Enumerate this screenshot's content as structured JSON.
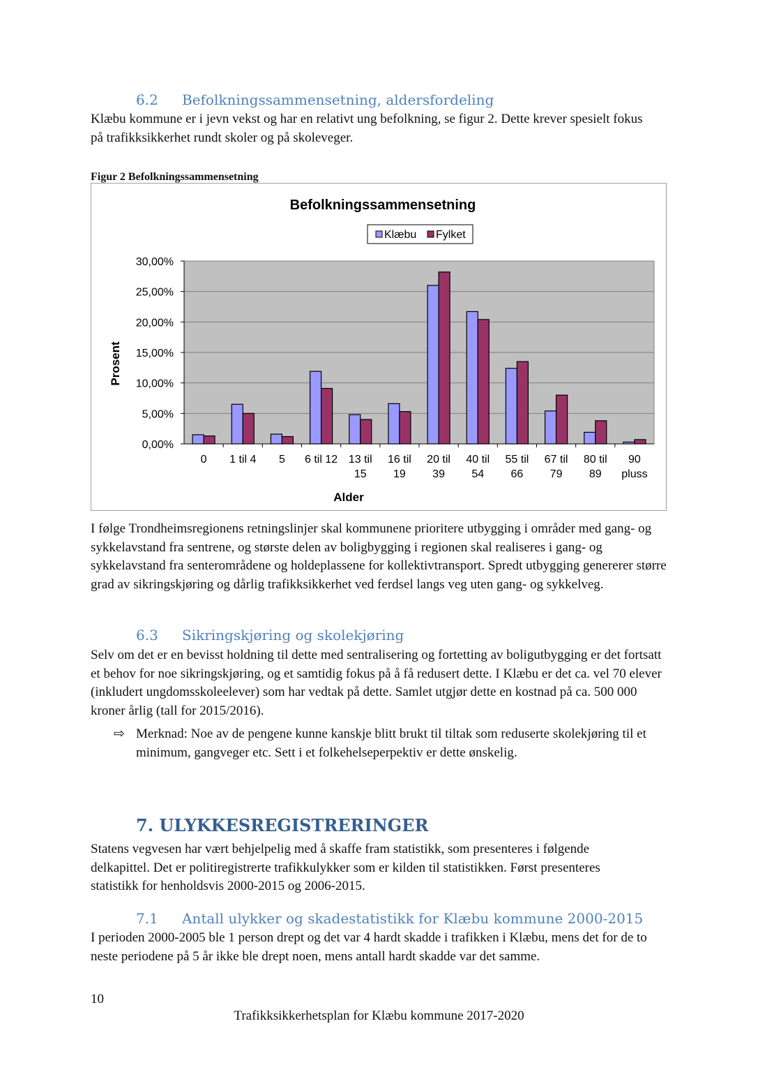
{
  "sections": {
    "s62": {
      "num": "6.2",
      "title": "Befolkningssammensetning, aldersfordeling",
      "body": "Klæbu kommune er i jevn vekst og har en relativt ung befolkning, se figur 2. Dette krever spesielt fokus på trafikksikkerhet rundt skoler og på skoleveger."
    },
    "figure_caption": "Figur 2 Befolkningssammensetning",
    "after_chart": "I følge Trondheimsregionens retningslinjer skal kommunene prioritere utbygging i områder med gang- og sykkelavstand fra sentrene, og største delen av boligbygging i regionen skal realiseres i gang- og sykkelavstand fra senterområdene og holdeplassene for kollektivtransport. Spredt utbygging genererer større grad av sikringskjøring og dårlig trafikksikkerhet ved ferdsel langs veg uten gang- og sykkelveg.",
    "s63": {
      "num": "6.3",
      "title": "Sikringskjøring og skolekjøring",
      "body": "Selv om det er en bevisst holdning til dette med sentralisering og fortetting av boligutbygging er det fortsatt et behov for noe sikringskjøring, og et samtidig fokus på å få redusert dette. I Klæbu er det ca. vel 70 elever (inkludert ungdomsskoleelever) som har vedtak på dette. Samlet utgjør dette en kostnad på ca. 500 000 kroner årlig (tall for 2015/2016).",
      "note_icon": "arrow-right-outline-icon",
      "note": "Merknad: Noe av de pengene kunne kanskje blitt brukt til tiltak som reduserte skolekjøring til et minimum, gangveger etc. Sett i et folkehelseperpektiv er dette ønskelig."
    },
    "s7": {
      "num": "7.",
      "title": "ULYKKESREGISTRERINGER",
      "body": "Statens vegvesen har vært behjelpelig med å skaffe fram statistikk, som presenteres i følgende delkapittel. Det er politiregistrerte trafikkulykker som er kilden til statistikken.  Først presenteres statistikk for henholdsvis 2000-2015 og 2006-2015."
    },
    "s71": {
      "num": "7.1",
      "title": "Antall ulykker og skadestatistikk for Klæbu kommune 2000-2015",
      "body": "I perioden 2000-2005 ble 1 person drept og det var 4 hardt skadde i trafikken i Klæbu, mens det for de to neste periodene på 5 år ikke ble drept noen, mens antall hardt skadde var det samme."
    }
  },
  "footer": {
    "page_number": "10",
    "title": "Trafikksikkerhetsplan for Klæbu kommune 2017-2020"
  },
  "chart_data": {
    "type": "bar",
    "title": "Befolkningssammensetning",
    "xlabel": "Alder",
    "ylabel": "Prosent",
    "categories": [
      [
        "0"
      ],
      [
        "1 til 4"
      ],
      [
        "5"
      ],
      [
        "6 til 12"
      ],
      [
        "13 til",
        "15"
      ],
      [
        "16 til",
        "19"
      ],
      [
        "20 til",
        "39"
      ],
      [
        "40 til",
        "54"
      ],
      [
        "55 til",
        "66"
      ],
      [
        "67 til",
        "79"
      ],
      [
        "80 til",
        "89"
      ],
      [
        "90",
        "pluss"
      ]
    ],
    "series": [
      {
        "name": "Klæbu",
        "color": "#9999ff",
        "values": [
          1.5,
          6.5,
          1.6,
          11.9,
          4.8,
          6.6,
          26.0,
          21.7,
          12.4,
          5.4,
          1.9,
          0.3
        ]
      },
      {
        "name": "Fylket",
        "color": "#993366",
        "values": [
          1.3,
          5.0,
          1.2,
          9.1,
          4.0,
          5.3,
          28.2,
          20.4,
          13.5,
          8.0,
          3.8,
          0.7
        ]
      }
    ],
    "yticks": [
      "0,00%",
      "5,00%",
      "10,00%",
      "15,00%",
      "20,00%",
      "25,00%",
      "30,00%"
    ],
    "ylim": [
      0,
      30
    ],
    "grid": true,
    "plot_background": "#c0c0c0",
    "legend_position": "top"
  }
}
